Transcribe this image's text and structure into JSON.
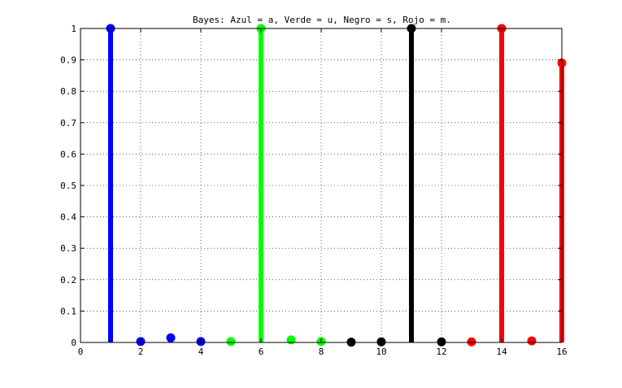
{
  "chart_data": {
    "type": "stem",
    "title": "Bayes: Azul = a, Verde = u, Negro = s, Rojo = m.",
    "xlabel": "",
    "ylabel": "",
    "xlim": [
      0,
      16
    ],
    "ylim": [
      0,
      1
    ],
    "xticks": [
      0,
      2,
      4,
      6,
      8,
      10,
      12,
      14,
      16
    ],
    "yticks": [
      0,
      0.1,
      0.2,
      0.3,
      0.4,
      0.5,
      0.6,
      0.7,
      0.8,
      0.9,
      1
    ],
    "grid": true,
    "legend": "none",
    "series": [
      {
        "color": "#0000ff",
        "x": [
          1,
          2,
          3,
          4
        ],
        "values": [
          1,
          0.003,
          0.015,
          0.003
        ]
      },
      {
        "color": "#00ff00",
        "x": [
          5,
          6,
          7,
          8
        ],
        "values": [
          0.003,
          1,
          0.008,
          0.003
        ]
      },
      {
        "color": "#000000",
        "x": [
          9,
          10,
          11,
          12
        ],
        "values": [
          0.001,
          0.002,
          1,
          0.002
        ]
      },
      {
        "color": "#ff0000",
        "x": [
          13,
          14,
          15,
          16
        ],
        "values": [
          0.002,
          1,
          0.005,
          0.89
        ]
      }
    ]
  }
}
